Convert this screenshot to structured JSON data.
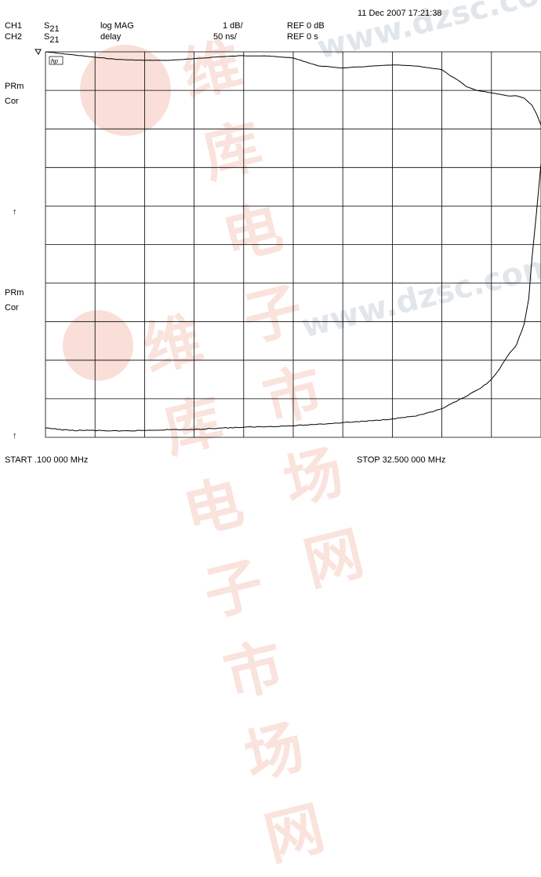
{
  "header": {
    "timestamp": "11 Dec 2007  17:21:38",
    "channels": [
      {
        "ch": "CH1",
        "param": "S",
        "param_sub": "21",
        "format": "log MAG",
        "scale": "1 dB/",
        "ref": "REF 0 dB"
      },
      {
        "ch": "CH2",
        "param": "S",
        "param_sub": "21",
        "format": "delay",
        "scale": "50 ns/",
        "ref": "REF 0 s"
      }
    ]
  },
  "side_labels": {
    "ch1_prm": "PRm",
    "ch1_cor": "Cor",
    "ch1_ref_arrow": "↑",
    "ch2_prm": "PRm",
    "ch2_cor": "Cor",
    "ch2_ref_arrow": "↑"
  },
  "marker_label": "hp",
  "footer": {
    "start": "START   .100 000 MHz",
    "stop": "STOP   32.500 000 MHz"
  },
  "watermark": {
    "chinese": "维库电子市场网",
    "url": "www.dzsc.com",
    "color": "#f2b8a8"
  },
  "colors": {
    "trace": "#000000",
    "grid": "#000000"
  },
  "chart_data": {
    "type": "line",
    "x_unit": "MHz",
    "xlim": [
      0.1,
      32.5
    ],
    "grid": true,
    "divisions": {
      "x": 10,
      "y": 10
    },
    "series": [
      {
        "name": "",
        "format": "log MAG",
        "reference_division": 0,
        "scale_per_div": 1,
        "ylim": [
          -10,
          0
        ],
        "x": [
          0.1,
          1.7,
          3.3,
          4.9,
          6.6,
          8.2,
          9.8,
          11.4,
          13.0,
          14.7,
          16.3,
          17.9,
          19.5,
          21.1,
          22.8,
          24.4,
          26.0,
          26.5,
          27.2,
          27.6,
          28.3,
          29.2,
          29.8,
          30.3,
          30.9,
          31.4,
          31.9,
          32.2,
          32.5
        ],
        "y": [
          0,
          -0.07,
          -0.14,
          -0.2,
          -0.22,
          -0.22,
          -0.18,
          -0.13,
          -0.1,
          -0.11,
          -0.16,
          -0.36,
          -0.42,
          -0.38,
          -0.34,
          -0.37,
          -0.46,
          -0.6,
          -0.77,
          -0.9,
          -1.0,
          -1.06,
          -1.1,
          -1.14,
          -1.14,
          -1.2,
          -1.38,
          -1.6,
          -1.9
        ]
      },
      {
        "name": "",
        "format": "delay",
        "unit": "ns",
        "reference_division": 10,
        "scale_per_div": 50,
        "ylim": [
          0,
          500
        ],
        "x": [
          0.1,
          1.7,
          3.3,
          4.9,
          6.6,
          8.2,
          9.8,
          11.4,
          13.0,
          14.7,
          16.3,
          17.9,
          19.5,
          21.1,
          22.8,
          24.4,
          25.4,
          26.0,
          27.6,
          28.5,
          29.2,
          29.8,
          30.3,
          30.9,
          31.4,
          31.7,
          31.9,
          32.2,
          32.5
        ],
        "y": [
          12,
          9,
          9,
          8,
          9,
          10,
          10,
          12,
          13,
          14,
          15,
          17,
          19,
          21,
          24,
          28,
          33,
          37,
          53,
          63,
          74,
          89,
          105,
          120,
          147,
          180,
          230,
          290,
          355
        ]
      }
    ]
  }
}
